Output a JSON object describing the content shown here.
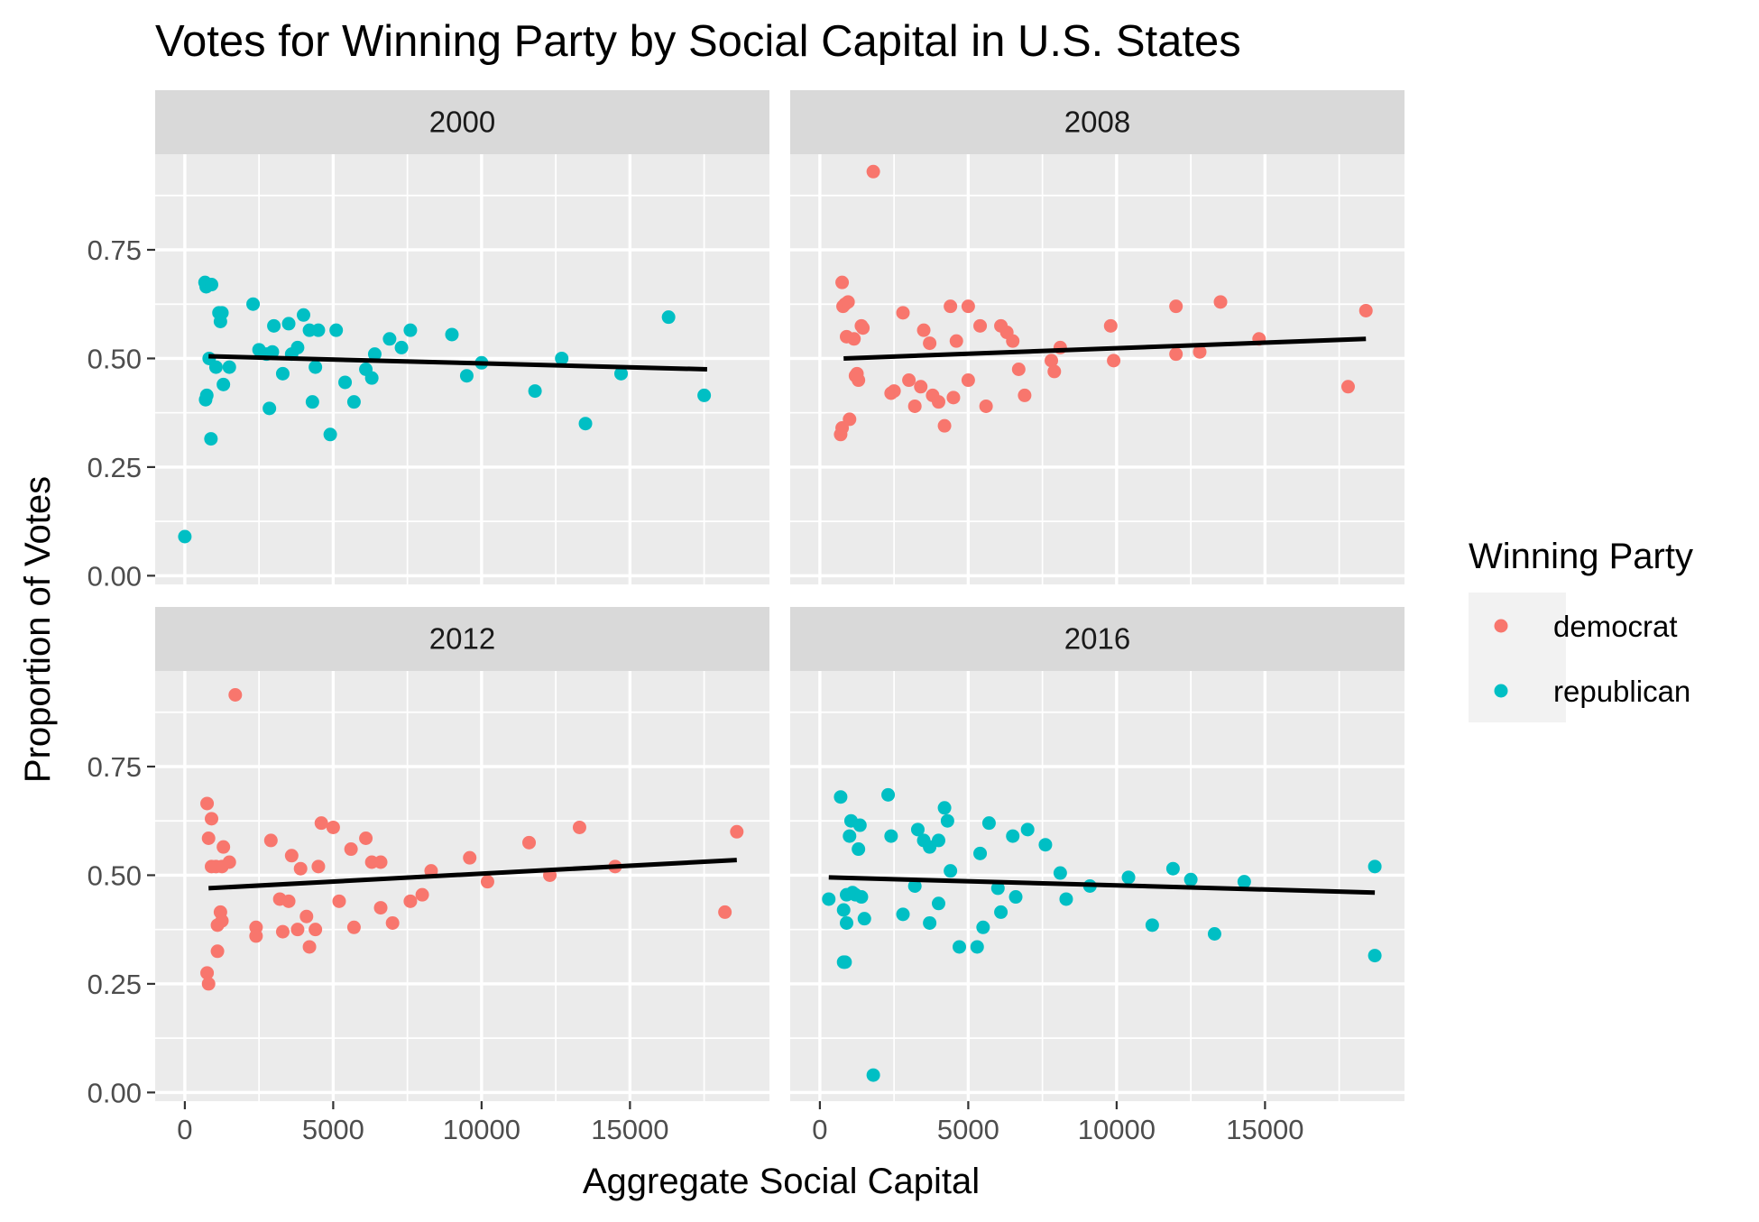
{
  "chart_data": {
    "type": "scatter",
    "title": "Votes for Winning Party by Social Capital in U.S. States",
    "xlabel": "Aggregate Social Capital",
    "ylabel": "Proportion of Votes",
    "xlim": [
      -1000,
      19700
    ],
    "ylim": [
      -0.02,
      0.97
    ],
    "x_ticks": [
      0,
      5000,
      10000,
      15000
    ],
    "x_tick_labels": [
      "0",
      "5000",
      "10000",
      "15000"
    ],
    "y_ticks": [
      0,
      0.25,
      0.5,
      0.75
    ],
    "y_tick_labels": [
      "0.00",
      "0.25",
      "0.50",
      "0.75"
    ],
    "grid": true,
    "legend": {
      "title": "Winning Party",
      "position": "right",
      "entries": [
        {
          "label": "democrat",
          "color": "#F8766D"
        },
        {
          "label": "republican",
          "color": "#00BFC4"
        }
      ]
    },
    "colors": {
      "democrat": "#F8766D",
      "republican": "#00BFC4",
      "trend": "#000000"
    },
    "panels": [
      {
        "label": "2000",
        "trend": [
          [
            800,
            0.505
          ],
          [
            17600,
            0.475
          ]
        ],
        "points": [
          [
            0,
            0.09,
            "republican"
          ],
          [
            680,
            0.675,
            "republican"
          ],
          [
            720,
            0.665,
            "republican"
          ],
          [
            900,
            0.67,
            "republican"
          ],
          [
            700,
            0.405,
            "republican"
          ],
          [
            740,
            0.415,
            "republican"
          ],
          [
            820,
            0.5,
            "republican"
          ],
          [
            880,
            0.315,
            "republican"
          ],
          [
            1050,
            0.48,
            "republican"
          ],
          [
            1150,
            0.605,
            "republican"
          ],
          [
            1200,
            0.585,
            "republican"
          ],
          [
            1250,
            0.605,
            "republican"
          ],
          [
            1300,
            0.44,
            "republican"
          ],
          [
            1500,
            0.48,
            "republican"
          ],
          [
            2300,
            0.625,
            "republican"
          ],
          [
            2500,
            0.52,
            "republican"
          ],
          [
            2750,
            0.51,
            "republican"
          ],
          [
            2850,
            0.385,
            "republican"
          ],
          [
            2950,
            0.515,
            "republican"
          ],
          [
            3000,
            0.575,
            "republican"
          ],
          [
            3300,
            0.465,
            "republican"
          ],
          [
            3500,
            0.58,
            "republican"
          ],
          [
            3600,
            0.51,
            "republican"
          ],
          [
            3800,
            0.525,
            "republican"
          ],
          [
            4000,
            0.6,
            "republican"
          ],
          [
            4200,
            0.565,
            "republican"
          ],
          [
            4300,
            0.4,
            "republican"
          ],
          [
            4400,
            0.48,
            "republican"
          ],
          [
            4500,
            0.565,
            "republican"
          ],
          [
            4900,
            0.325,
            "republican"
          ],
          [
            5100,
            0.565,
            "republican"
          ],
          [
            5400,
            0.445,
            "republican"
          ],
          [
            5700,
            0.4,
            "republican"
          ],
          [
            6100,
            0.475,
            "republican"
          ],
          [
            6300,
            0.455,
            "republican"
          ],
          [
            6400,
            0.51,
            "republican"
          ],
          [
            6900,
            0.545,
            "republican"
          ],
          [
            7300,
            0.525,
            "republican"
          ],
          [
            7600,
            0.565,
            "republican"
          ],
          [
            9000,
            0.555,
            "republican"
          ],
          [
            9500,
            0.46,
            "republican"
          ],
          [
            10000,
            0.49,
            "republican"
          ],
          [
            11800,
            0.425,
            "republican"
          ],
          [
            12700,
            0.5,
            "republican"
          ],
          [
            13500,
            0.35,
            "republican"
          ],
          [
            14700,
            0.465,
            "republican"
          ],
          [
            16300,
            0.595,
            "republican"
          ],
          [
            17500,
            0.415,
            "republican"
          ]
        ]
      },
      {
        "label": "2008",
        "trend": [
          [
            800,
            0.5
          ],
          [
            18400,
            0.545
          ]
        ],
        "points": [
          [
            1800,
            0.93,
            "democrat"
          ],
          [
            750,
            0.675,
            "democrat"
          ],
          [
            780,
            0.62,
            "democrat"
          ],
          [
            850,
            0.625,
            "democrat"
          ],
          [
            950,
            0.63,
            "democrat"
          ],
          [
            900,
            0.55,
            "democrat"
          ],
          [
            1150,
            0.545,
            "democrat"
          ],
          [
            1200,
            0.46,
            "democrat"
          ],
          [
            1250,
            0.465,
            "democrat"
          ],
          [
            1300,
            0.45,
            "democrat"
          ],
          [
            1400,
            0.575,
            "democrat"
          ],
          [
            1450,
            0.57,
            "democrat"
          ],
          [
            700,
            0.325,
            "democrat"
          ],
          [
            750,
            0.34,
            "democrat"
          ],
          [
            1000,
            0.36,
            "democrat"
          ],
          [
            2400,
            0.42,
            "democrat"
          ],
          [
            2500,
            0.425,
            "democrat"
          ],
          [
            2800,
            0.605,
            "democrat"
          ],
          [
            3000,
            0.45,
            "democrat"
          ],
          [
            3200,
            0.39,
            "democrat"
          ],
          [
            3400,
            0.435,
            "democrat"
          ],
          [
            3500,
            0.565,
            "democrat"
          ],
          [
            3700,
            0.535,
            "democrat"
          ],
          [
            3800,
            0.415,
            "democrat"
          ],
          [
            4000,
            0.4,
            "democrat"
          ],
          [
            4200,
            0.345,
            "democrat"
          ],
          [
            4400,
            0.62,
            "democrat"
          ],
          [
            4500,
            0.41,
            "democrat"
          ],
          [
            4600,
            0.54,
            "democrat"
          ],
          [
            5000,
            0.45,
            "democrat"
          ],
          [
            5000,
            0.62,
            "democrat"
          ],
          [
            5400,
            0.575,
            "democrat"
          ],
          [
            5600,
            0.39,
            "democrat"
          ],
          [
            6100,
            0.575,
            "democrat"
          ],
          [
            6300,
            0.56,
            "democrat"
          ],
          [
            6500,
            0.54,
            "democrat"
          ],
          [
            6700,
            0.475,
            "democrat"
          ],
          [
            6900,
            0.415,
            "democrat"
          ],
          [
            7800,
            0.495,
            "democrat"
          ],
          [
            7900,
            0.47,
            "democrat"
          ],
          [
            8100,
            0.525,
            "democrat"
          ],
          [
            9800,
            0.575,
            "democrat"
          ],
          [
            9900,
            0.495,
            "democrat"
          ],
          [
            12000,
            0.62,
            "democrat"
          ],
          [
            12000,
            0.51,
            "democrat"
          ],
          [
            12800,
            0.515,
            "democrat"
          ],
          [
            13500,
            0.63,
            "democrat"
          ],
          [
            14800,
            0.545,
            "democrat"
          ],
          [
            17800,
            0.435,
            "democrat"
          ],
          [
            18400,
            0.61,
            "democrat"
          ]
        ]
      },
      {
        "label": "2012",
        "trend": [
          [
            800,
            0.47
          ],
          [
            18600,
            0.535
          ]
        ],
        "points": [
          [
            1700,
            0.915,
            "democrat"
          ],
          [
            750,
            0.665,
            "democrat"
          ],
          [
            900,
            0.63,
            "democrat"
          ],
          [
            800,
            0.585,
            "democrat"
          ],
          [
            900,
            0.52,
            "democrat"
          ],
          [
            1050,
            0.52,
            "democrat"
          ],
          [
            1250,
            0.52,
            "democrat"
          ],
          [
            1300,
            0.565,
            "democrat"
          ],
          [
            1500,
            0.53,
            "democrat"
          ],
          [
            1100,
            0.385,
            "democrat"
          ],
          [
            1200,
            0.415,
            "democrat"
          ],
          [
            1250,
            0.395,
            "democrat"
          ],
          [
            1100,
            0.325,
            "democrat"
          ],
          [
            750,
            0.275,
            "democrat"
          ],
          [
            800,
            0.25,
            "democrat"
          ],
          [
            2400,
            0.38,
            "democrat"
          ],
          [
            2400,
            0.36,
            "democrat"
          ],
          [
            2900,
            0.58,
            "democrat"
          ],
          [
            3200,
            0.445,
            "democrat"
          ],
          [
            3300,
            0.37,
            "democrat"
          ],
          [
            3500,
            0.44,
            "democrat"
          ],
          [
            3600,
            0.545,
            "democrat"
          ],
          [
            3800,
            0.375,
            "democrat"
          ],
          [
            3900,
            0.515,
            "democrat"
          ],
          [
            4100,
            0.405,
            "democrat"
          ],
          [
            4200,
            0.335,
            "democrat"
          ],
          [
            4400,
            0.375,
            "democrat"
          ],
          [
            4500,
            0.52,
            "democrat"
          ],
          [
            4600,
            0.62,
            "democrat"
          ],
          [
            5000,
            0.61,
            "democrat"
          ],
          [
            5200,
            0.44,
            "democrat"
          ],
          [
            5600,
            0.56,
            "democrat"
          ],
          [
            5700,
            0.38,
            "democrat"
          ],
          [
            6100,
            0.585,
            "democrat"
          ],
          [
            6300,
            0.53,
            "democrat"
          ],
          [
            6600,
            0.53,
            "democrat"
          ],
          [
            6600,
            0.425,
            "democrat"
          ],
          [
            7000,
            0.39,
            "democrat"
          ],
          [
            7600,
            0.44,
            "democrat"
          ],
          [
            8000,
            0.455,
            "democrat"
          ],
          [
            8300,
            0.51,
            "democrat"
          ],
          [
            9600,
            0.54,
            "democrat"
          ],
          [
            10200,
            0.485,
            "democrat"
          ],
          [
            11600,
            0.575,
            "democrat"
          ],
          [
            12300,
            0.5,
            "democrat"
          ],
          [
            13300,
            0.61,
            "democrat"
          ],
          [
            14500,
            0.52,
            "democrat"
          ],
          [
            18200,
            0.415,
            "democrat"
          ],
          [
            18600,
            0.6,
            "democrat"
          ]
        ]
      },
      {
        "label": "2016",
        "trend": [
          [
            300,
            0.495
          ],
          [
            18700,
            0.46
          ]
        ],
        "points": [
          [
            1800,
            0.04,
            "republican"
          ],
          [
            300,
            0.445,
            "republican"
          ],
          [
            700,
            0.68,
            "republican"
          ],
          [
            800,
            0.3,
            "republican"
          ],
          [
            850,
            0.3,
            "republican"
          ],
          [
            800,
            0.42,
            "republican"
          ],
          [
            900,
            0.39,
            "republican"
          ],
          [
            900,
            0.455,
            "republican"
          ],
          [
            1000,
            0.59,
            "republican"
          ],
          [
            1050,
            0.625,
            "republican"
          ],
          [
            1100,
            0.46,
            "republican"
          ],
          [
            1200,
            0.455,
            "republican"
          ],
          [
            1300,
            0.56,
            "republican"
          ],
          [
            1350,
            0.615,
            "republican"
          ],
          [
            1400,
            0.45,
            "republican"
          ],
          [
            1500,
            0.4,
            "republican"
          ],
          [
            2300,
            0.685,
            "republican"
          ],
          [
            2400,
            0.59,
            "republican"
          ],
          [
            2800,
            0.41,
            "republican"
          ],
          [
            3200,
            0.475,
            "republican"
          ],
          [
            3300,
            0.605,
            "republican"
          ],
          [
            3500,
            0.58,
            "republican"
          ],
          [
            3700,
            0.39,
            "republican"
          ],
          [
            3700,
            0.565,
            "republican"
          ],
          [
            4000,
            0.58,
            "republican"
          ],
          [
            4000,
            0.435,
            "republican"
          ],
          [
            4200,
            0.655,
            "republican"
          ],
          [
            4300,
            0.625,
            "republican"
          ],
          [
            4400,
            0.51,
            "republican"
          ],
          [
            4700,
            0.335,
            "republican"
          ],
          [
            5300,
            0.335,
            "republican"
          ],
          [
            5400,
            0.55,
            "republican"
          ],
          [
            5500,
            0.38,
            "republican"
          ],
          [
            5700,
            0.62,
            "republican"
          ],
          [
            6000,
            0.47,
            "republican"
          ],
          [
            6100,
            0.415,
            "republican"
          ],
          [
            6500,
            0.59,
            "republican"
          ],
          [
            6600,
            0.45,
            "republican"
          ],
          [
            7000,
            0.605,
            "republican"
          ],
          [
            7600,
            0.57,
            "republican"
          ],
          [
            8100,
            0.505,
            "republican"
          ],
          [
            8300,
            0.445,
            "republican"
          ],
          [
            9100,
            0.475,
            "republican"
          ],
          [
            10400,
            0.495,
            "republican"
          ],
          [
            11900,
            0.515,
            "republican"
          ],
          [
            11200,
            0.385,
            "republican"
          ],
          [
            12500,
            0.49,
            "republican"
          ],
          [
            13300,
            0.365,
            "republican"
          ],
          [
            14300,
            0.485,
            "republican"
          ],
          [
            18700,
            0.52,
            "republican"
          ],
          [
            18700,
            0.315,
            "republican"
          ]
        ]
      }
    ]
  }
}
